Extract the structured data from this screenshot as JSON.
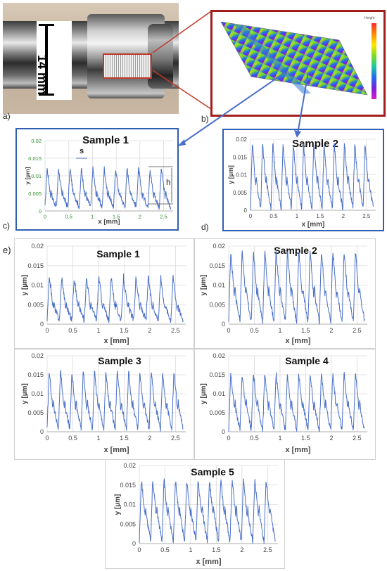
{
  "panel_letters": {
    "a": "a)",
    "b": "b)",
    "c": "c)",
    "d": "d)",
    "e": "e)"
  },
  "photo": {
    "scale_label": "14 mm"
  },
  "surface": {
    "legend_title": "Height",
    "legend_colors": [
      "#ff2a2a",
      "#ff8a00",
      "#ffe600",
      "#7ddc1f",
      "#1ec8a0",
      "#1e6ef0",
      "#7a1ee0",
      "#d21ec8"
    ]
  },
  "annotations": {
    "spacing": "s",
    "height": "h"
  },
  "chart_data": [
    {
      "id": "c1",
      "type": "line",
      "title": "Sample 1",
      "xlabel": "x [mm]",
      "ylabel": "y [µm]",
      "xlim": [
        0,
        2.7
      ],
      "ylim": [
        0,
        0.02
      ],
      "xticks": [
        "0",
        "0.5",
        "1",
        "1.5",
        "2",
        "2.5"
      ],
      "yticks": [
        "0",
        "0.005",
        "0.01",
        "0.015",
        "0.02"
      ],
      "series": [
        {
          "peaks": 11,
          "peak": 0.0122,
          "trough": 0.001,
          "shoulder": 0.004
        }
      ],
      "color": "#4a6fc9",
      "grid": true
    },
    {
      "id": "c2",
      "type": "line",
      "title": "Sample 2",
      "xlabel": "x [mm]",
      "ylabel": "y [µm]",
      "xlim": [
        0,
        2.7
      ],
      "ylim": [
        0,
        0.02
      ],
      "xticks": [
        "0",
        "0.5",
        "1",
        "1.5",
        "2",
        "2.5"
      ],
      "yticks": [
        "0",
        "0.005",
        "0.01",
        "0.015",
        "0.02"
      ],
      "series": [
        {
          "peaks": 12,
          "peak": 0.019,
          "trough": 0.0005,
          "shoulder": 0.007
        }
      ],
      "color": "#4a6fc9",
      "grid": true
    },
    {
      "id": "e1",
      "type": "line",
      "title": "Sample 1",
      "xlabel": "x [mm]",
      "ylabel": "y [µm]",
      "xlim": [
        0,
        2.7
      ],
      "ylim": [
        0,
        0.02
      ],
      "xticks": [
        "0",
        "0.5",
        "1",
        "1.5",
        "2",
        "2.5"
      ],
      "yticks": [
        "0",
        "0.005",
        "0.01",
        "0.015",
        "0.02"
      ],
      "series": [
        {
          "peaks": 11,
          "peak": 0.0122,
          "trough": 0.001,
          "shoulder": 0.004
        }
      ],
      "color": "#4a6fc9",
      "grid": true
    },
    {
      "id": "e2",
      "type": "line",
      "title": "Sample 2",
      "xlabel": "x [mm]",
      "ylabel": "y [µm]",
      "xlim": [
        0,
        2.7
      ],
      "ylim": [
        0,
        0.02
      ],
      "xticks": [
        "0",
        "0.5",
        "1",
        "1.5",
        "2",
        "2.5"
      ],
      "yticks": [
        "0",
        "0.005",
        "0.01",
        "0.015",
        "0.02"
      ],
      "series": [
        {
          "peaks": 12,
          "peak": 0.019,
          "trough": 0.0005,
          "shoulder": 0.007
        }
      ],
      "color": "#4a6fc9",
      "grid": true
    },
    {
      "id": "e3",
      "type": "line",
      "title": "Sample 3",
      "xlabel": "x [mm]",
      "ylabel": "y [µm]",
      "xlim": [
        0,
        2.7
      ],
      "ylim": [
        0,
        0.02
      ],
      "xticks": [
        "0",
        "0.5",
        "1",
        "1.5",
        "2",
        "2.5"
      ],
      "yticks": [
        "0",
        "0.005",
        "0.01",
        "0.015",
        "0.02"
      ],
      "series": [
        {
          "peaks": 12,
          "peak": 0.016,
          "trough": 0.0008,
          "shoulder": 0.006
        }
      ],
      "color": "#4a6fc9",
      "grid": true
    },
    {
      "id": "e4",
      "type": "line",
      "title": "Sample 4",
      "xlabel": "x [mm]",
      "ylabel": "y [µm]",
      "xlim": [
        0,
        2.7
      ],
      "ylim": [
        0,
        0.02
      ],
      "xticks": [
        "0",
        "0.5",
        "1",
        "1.5",
        "2",
        "2.5"
      ],
      "yticks": [
        "0",
        "0.005",
        "0.01",
        "0.015",
        "0.02"
      ],
      "series": [
        {
          "peaks": 12,
          "peak": 0.0155,
          "trough": 0.0005,
          "shoulder": 0.006
        }
      ],
      "color": "#4a6fc9",
      "grid": true
    },
    {
      "id": "e5",
      "type": "line",
      "title": "Sample 5",
      "xlabel": "x [mm]",
      "ylabel": "y [µm]",
      "xlim": [
        0,
        2.7
      ],
      "ylim": [
        0,
        0.02
      ],
      "xticks": [
        "0",
        "0.5",
        "1",
        "1.5",
        "2",
        "2.5"
      ],
      "yticks": [
        "0",
        "0.005",
        "0.01",
        "0.015",
        "0.02"
      ],
      "series": [
        {
          "peaks": 12,
          "peak": 0.0165,
          "trough": 0.0006,
          "shoulder": 0.007
        }
      ],
      "color": "#4a6fc9",
      "grid": true
    }
  ]
}
